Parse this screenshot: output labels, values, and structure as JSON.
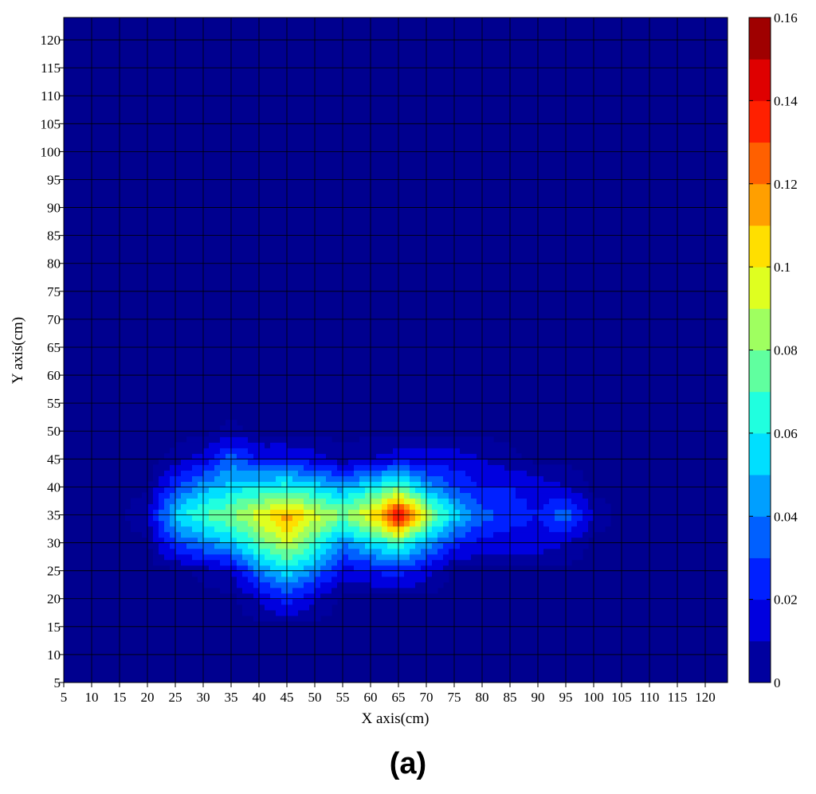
{
  "chart_data": {
    "type": "heatmap",
    "title": "",
    "xlabel": "X axis(cm)",
    "ylabel": "Y axis(cm)",
    "x_ticks": [
      "5",
      "10",
      "15",
      "20",
      "25",
      "30",
      "35",
      "40",
      "45",
      "50",
      "55",
      "60",
      "65",
      "70",
      "75",
      "80",
      "85",
      "90",
      "95",
      "100",
      "105",
      "110",
      "115",
      "120"
    ],
    "y_ticks": [
      "5",
      "10",
      "15",
      "20",
      "25",
      "30",
      "35",
      "40",
      "45",
      "50",
      "55",
      "60",
      "65",
      "70",
      "75",
      "80",
      "85",
      "90",
      "95",
      "100",
      "105",
      "110",
      "115",
      "120"
    ],
    "xlim": [
      5,
      124
    ],
    "ylim": [
      5,
      124
    ],
    "grid": true,
    "colormap": "jet",
    "colorbar": {
      "range": [
        0,
        0.16
      ],
      "ticks": [
        "0",
        "0.02",
        "0.04",
        "0.06",
        "0.08",
        "0.1",
        "0.12",
        "0.14",
        "0.16"
      ]
    },
    "grid_x": [
      5,
      10,
      15,
      20,
      25,
      30,
      35,
      40,
      45,
      50,
      55,
      60,
      65,
      70,
      75,
      80,
      85,
      90,
      95,
      100,
      105,
      110,
      115,
      120
    ],
    "grid_y": [
      5,
      10,
      15,
      20,
      25,
      30,
      35,
      40,
      45,
      50,
      55,
      60,
      65,
      70,
      75,
      80,
      85,
      90,
      95,
      100,
      105,
      110,
      115,
      120
    ],
    "nonzero_values": [
      {
        "x": 20,
        "y": 35,
        "v": 0.01
      },
      {
        "x": 25,
        "y": 30,
        "v": 0.03
      },
      {
        "x": 25,
        "y": 35,
        "v": 0.055
      },
      {
        "x": 25,
        "y": 40,
        "v": 0.03
      },
      {
        "x": 25,
        "y": 45,
        "v": 0.005
      },
      {
        "x": 30,
        "y": 25,
        "v": 0.005
      },
      {
        "x": 30,
        "y": 30,
        "v": 0.04
      },
      {
        "x": 30,
        "y": 35,
        "v": 0.07
      },
      {
        "x": 30,
        "y": 40,
        "v": 0.045
      },
      {
        "x": 30,
        "y": 45,
        "v": 0.015
      },
      {
        "x": 35,
        "y": 25,
        "v": 0.01
      },
      {
        "x": 35,
        "y": 30,
        "v": 0.05
      },
      {
        "x": 35,
        "y": 35,
        "v": 0.08
      },
      {
        "x": 35,
        "y": 40,
        "v": 0.055
      },
      {
        "x": 35,
        "y": 45,
        "v": 0.035
      },
      {
        "x": 35,
        "y": 50,
        "v": 0.005
      },
      {
        "x": 40,
        "y": 20,
        "v": 0.01
      },
      {
        "x": 40,
        "y": 25,
        "v": 0.04
      },
      {
        "x": 40,
        "y": 30,
        "v": 0.075
      },
      {
        "x": 40,
        "y": 35,
        "v": 0.095
      },
      {
        "x": 40,
        "y": 40,
        "v": 0.06
      },
      {
        "x": 40,
        "y": 45,
        "v": 0.02
      },
      {
        "x": 45,
        "y": 20,
        "v": 0.025
      },
      {
        "x": 45,
        "y": 25,
        "v": 0.055
      },
      {
        "x": 45,
        "y": 30,
        "v": 0.09
      },
      {
        "x": 45,
        "y": 35,
        "v": 0.115
      },
      {
        "x": 45,
        "y": 40,
        "v": 0.065
      },
      {
        "x": 45,
        "y": 45,
        "v": 0.02
      },
      {
        "x": 50,
        "y": 20,
        "v": 0.01
      },
      {
        "x": 50,
        "y": 25,
        "v": 0.04
      },
      {
        "x": 50,
        "y": 30,
        "v": 0.07
      },
      {
        "x": 50,
        "y": 35,
        "v": 0.095
      },
      {
        "x": 50,
        "y": 40,
        "v": 0.055
      },
      {
        "x": 50,
        "y": 45,
        "v": 0.015
      },
      {
        "x": 55,
        "y": 25,
        "v": 0.015
      },
      {
        "x": 55,
        "y": 30,
        "v": 0.04
      },
      {
        "x": 55,
        "y": 35,
        "v": 0.08
      },
      {
        "x": 55,
        "y": 40,
        "v": 0.045
      },
      {
        "x": 55,
        "y": 45,
        "v": 0.005
      },
      {
        "x": 60,
        "y": 25,
        "v": 0.02
      },
      {
        "x": 60,
        "y": 30,
        "v": 0.055
      },
      {
        "x": 60,
        "y": 35,
        "v": 0.1
      },
      {
        "x": 60,
        "y": 40,
        "v": 0.06
      },
      {
        "x": 60,
        "y": 45,
        "v": 0.01
      },
      {
        "x": 65,
        "y": 25,
        "v": 0.025
      },
      {
        "x": 65,
        "y": 30,
        "v": 0.07
      },
      {
        "x": 65,
        "y": 35,
        "v": 0.15
      },
      {
        "x": 65,
        "y": 40,
        "v": 0.075
      },
      {
        "x": 65,
        "y": 45,
        "v": 0.015
      },
      {
        "x": 70,
        "y": 25,
        "v": 0.015
      },
      {
        "x": 70,
        "y": 30,
        "v": 0.045
      },
      {
        "x": 70,
        "y": 35,
        "v": 0.09
      },
      {
        "x": 70,
        "y": 40,
        "v": 0.045
      },
      {
        "x": 70,
        "y": 45,
        "v": 0.015
      },
      {
        "x": 75,
        "y": 30,
        "v": 0.025
      },
      {
        "x": 75,
        "y": 35,
        "v": 0.055
      },
      {
        "x": 75,
        "y": 40,
        "v": 0.03
      },
      {
        "x": 75,
        "y": 45,
        "v": 0.015
      },
      {
        "x": 80,
        "y": 30,
        "v": 0.015
      },
      {
        "x": 80,
        "y": 35,
        "v": 0.035
      },
      {
        "x": 80,
        "y": 40,
        "v": 0.02
      },
      {
        "x": 80,
        "y": 45,
        "v": 0.01
      },
      {
        "x": 85,
        "y": 30,
        "v": 0.015
      },
      {
        "x": 85,
        "y": 35,
        "v": 0.025
      },
      {
        "x": 85,
        "y": 40,
        "v": 0.02
      },
      {
        "x": 85,
        "y": 45,
        "v": 0.005
      },
      {
        "x": 90,
        "y": 30,
        "v": 0.015
      },
      {
        "x": 90,
        "y": 35,
        "v": 0.02
      },
      {
        "x": 90,
        "y": 40,
        "v": 0.015
      },
      {
        "x": 95,
        "y": 30,
        "v": 0.01
      },
      {
        "x": 95,
        "y": 35,
        "v": 0.04
      },
      {
        "x": 95,
        "y": 40,
        "v": 0.01
      },
      {
        "x": 100,
        "y": 35,
        "v": 0.008
      }
    ],
    "panel_label": "(a)"
  }
}
